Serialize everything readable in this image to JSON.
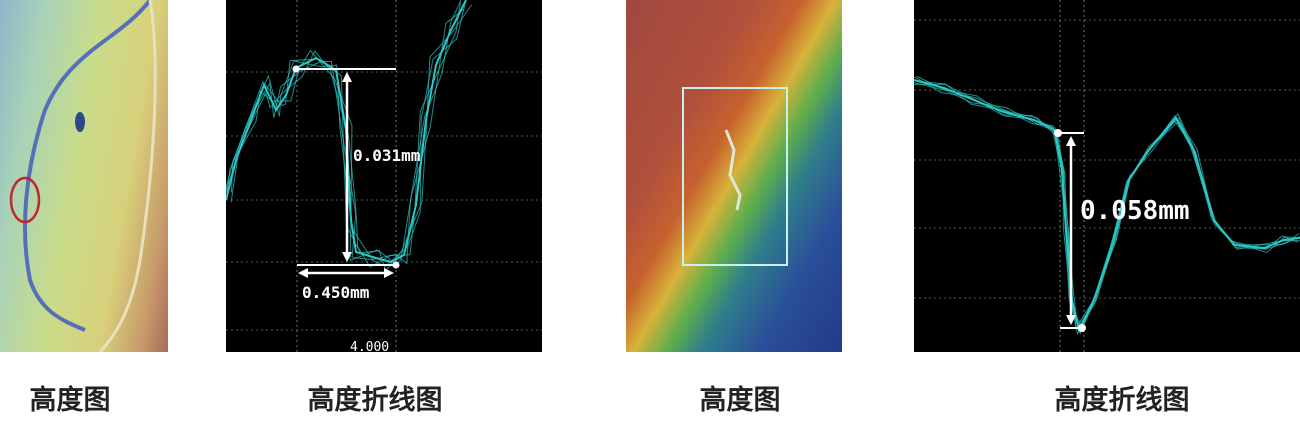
{
  "panels": [
    {
      "caption": "高度图",
      "type": "height-map"
    },
    {
      "caption": "高度折线图",
      "type": "height-profile",
      "measurements": {
        "height": "0.031mm",
        "width": "0.450mm",
        "axis_label": "4.000"
      }
    },
    {
      "caption": "高度图",
      "type": "height-map"
    },
    {
      "caption": "高度折线图",
      "type": "height-profile",
      "measurements": {
        "height": "0.058mm"
      }
    }
  ],
  "colors": {
    "trace": "#2ec8c4",
    "annotation": "#ffffff",
    "marker_circle": "#c0282e"
  }
}
